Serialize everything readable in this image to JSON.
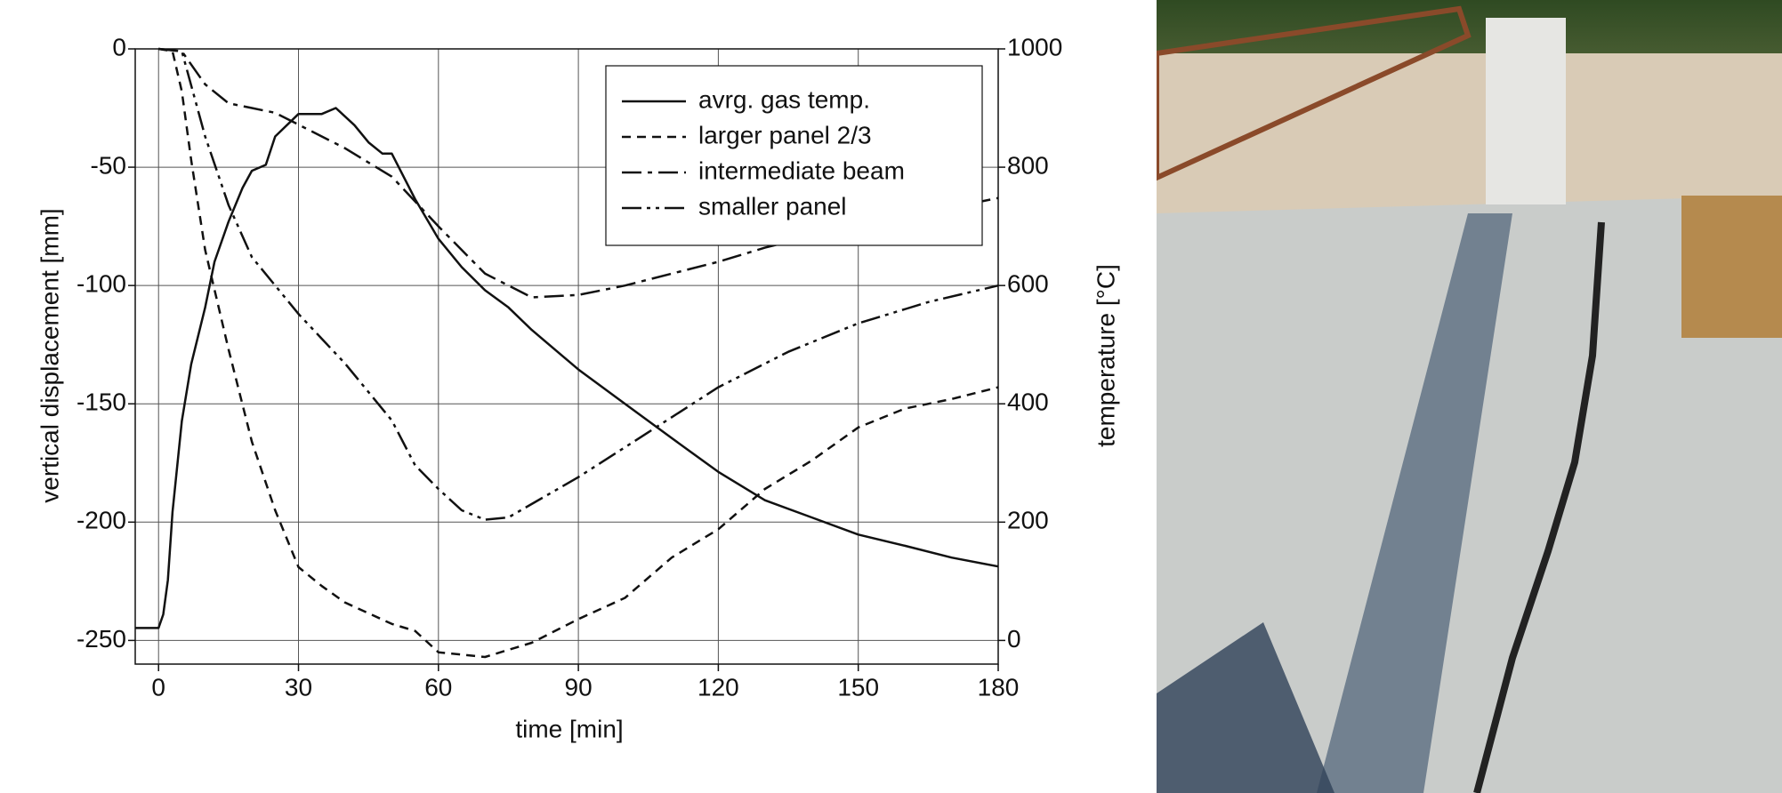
{
  "chart_data": {
    "type": "line",
    "xlabel": "time [min]",
    "ylabel": "vertical displacement [mm]",
    "y2label": "temperature [°C]",
    "xlim": [
      -5,
      180
    ],
    "xticks": [
      0,
      30,
      60,
      90,
      120,
      150,
      180
    ],
    "ylim": [
      -260,
      0
    ],
    "yticks": [
      0,
      -50,
      -100,
      -150,
      -200,
      -250
    ],
    "y2lim": [
      -40,
      1000
    ],
    "y2ticks": [
      0,
      200,
      400,
      600,
      800,
      1000
    ],
    "grid": true,
    "legend": "upper right",
    "series": [
      {
        "name": "avrg. gas temp.",
        "color": "#111111",
        "dash": "solid",
        "axis": "y2",
        "x": [
          -5,
          0,
          1,
          2,
          3,
          5,
          7,
          10,
          12,
          15,
          18,
          20,
          23,
          25,
          30,
          35,
          38,
          42,
          45,
          48,
          50,
          55,
          60,
          65,
          70,
          75,
          80,
          90,
          100,
          110,
          120,
          130,
          140,
          150,
          160,
          170,
          180
        ],
        "values": [
          21,
          21,
          44,
          102,
          217,
          371,
          467,
          563,
          640,
          708,
          765,
          794,
          804,
          852,
          890,
          890,
          900,
          871,
          842,
          823,
          823,
          746,
          679,
          631,
          592,
          563,
          525,
          458,
          400,
          342,
          285,
          237,
          208,
          179,
          160,
          140,
          125
        ]
      },
      {
        "name": "larger panel 2/3",
        "color": "#111111",
        "dash": "dashed",
        "x": [
          0,
          3,
          5,
          7,
          10,
          15,
          20,
          25,
          30,
          35,
          40,
          50,
          55,
          60,
          70,
          80,
          90,
          100,
          110,
          120,
          130,
          140,
          150,
          160,
          170,
          180
        ],
        "values": [
          0,
          -1,
          -18,
          -47,
          -85,
          -127,
          -166,
          -195,
          -219,
          -227,
          -234,
          -243,
          -246,
          -255,
          -257,
          -251,
          -241,
          -232,
          -215,
          -203,
          -186,
          -174,
          -160,
          -152,
          -148,
          -143
        ]
      },
      {
        "name": "intermediate beam",
        "color": "#111111",
        "dash": "dashdot",
        "x": [
          0,
          5,
          10,
          15,
          20,
          25,
          30,
          40,
          50,
          60,
          70,
          80,
          90,
          100,
          110,
          120,
          130,
          140,
          150,
          160,
          170,
          180
        ],
        "values": [
          0,
          -1,
          -15,
          -23,
          -25,
          -27,
          -32,
          -42,
          -54,
          -75,
          -95,
          -105,
          -104,
          -100,
          -95,
          -90,
          -84,
          -79,
          -75,
          -71,
          -67,
          -63
        ]
      },
      {
        "name": "smaller panel",
        "color": "#111111",
        "dash": "dashdotdot",
        "x": [
          0,
          5,
          10,
          15,
          20,
          30,
          40,
          50,
          55,
          60,
          65,
          70,
          75,
          90,
          105,
          120,
          135,
          150,
          165,
          180
        ],
        "values": [
          0,
          -1,
          -37,
          -66,
          -88,
          -112,
          -133,
          -157,
          -176,
          -186,
          -195,
          -199,
          -198,
          -181,
          -162,
          -143,
          -128,
          -116,
          -107,
          -100
        ]
      }
    ]
  }
}
